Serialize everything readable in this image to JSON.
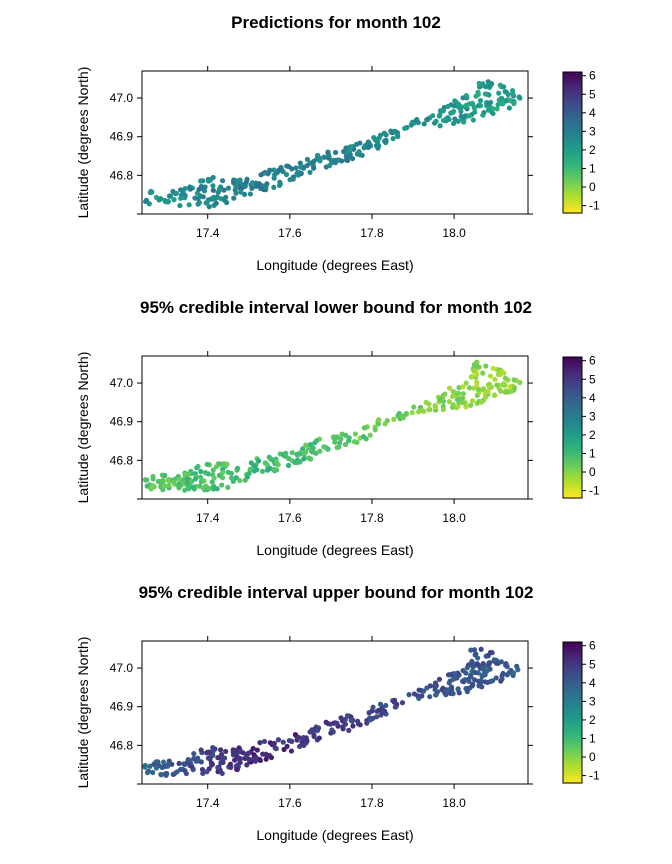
{
  "chart_data": [
    {
      "type": "heatmap",
      "title": "Predictions for month 102",
      "xlabel": "Longitude (degrees East)",
      "ylabel": "Latitude (degrees North)",
      "xlim": [
        17.24,
        18.18
      ],
      "ylim": [
        46.7,
        47.07
      ],
      "xticks": [
        "17.4",
        "17.6",
        "17.8",
        "18.0"
      ],
      "yticks": [
        "46.8",
        "46.9",
        "47.0"
      ],
      "colorbar": {
        "min": -1.4,
        "max": 6.2,
        "ticks": [
          "-1",
          "0",
          "1",
          "2",
          "3",
          "4",
          "5",
          "6"
        ]
      },
      "region_means": {
        "west": 2.3,
        "west_central": 3.0,
        "central": 2.6,
        "east": 2.0
      }
    },
    {
      "type": "heatmap",
      "title": "95% credible interval lower bound for month 102",
      "xlabel": "Longitude (degrees East)",
      "ylabel": "Latitude (degrees North)",
      "xlim": [
        17.24,
        18.18
      ],
      "ylim": [
        46.7,
        47.07
      ],
      "xticks": [
        "17.4",
        "17.6",
        "17.8",
        "18.0"
      ],
      "yticks": [
        "46.8",
        "46.9",
        "47.0"
      ],
      "colorbar": {
        "min": -1.4,
        "max": 6.2,
        "ticks": [
          "-1",
          "0",
          "1",
          "2",
          "3",
          "4",
          "5",
          "6"
        ]
      },
      "region_means": {
        "west": 0.6,
        "west_central": 1.0,
        "central": 0.5,
        "east": -0.2
      }
    },
    {
      "type": "heatmap",
      "title": "95% credible interval upper bound for month 102",
      "xlabel": "Longitude (degrees East)",
      "ylabel": "Latitude (degrees North)",
      "xlim": [
        17.24,
        18.18
      ],
      "ylim": [
        46.7,
        47.07
      ],
      "xticks": [
        "17.4",
        "17.6",
        "17.8",
        "18.0"
      ],
      "yticks": [
        "46.8",
        "46.9",
        "47.0"
      ],
      "colorbar": {
        "min": -1.4,
        "max": 6.2,
        "ticks": [
          "-1",
          "0",
          "1",
          "2",
          "3",
          "4",
          "5",
          "6"
        ]
      },
      "region_means": {
        "west": 3.8,
        "west_central": 5.3,
        "central": 4.7,
        "east": 4.1
      }
    }
  ]
}
